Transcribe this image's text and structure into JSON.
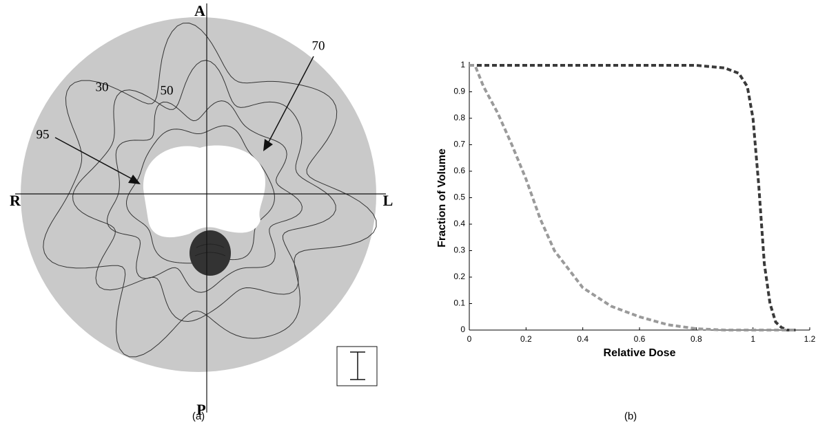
{
  "panel_a": {
    "labels": {
      "anterior": "A",
      "posterior": "P",
      "right": "R",
      "left": "L"
    },
    "contours": [
      "30",
      "50",
      "70",
      "95"
    ],
    "caption": "(a)"
  },
  "chart_data": {
    "type": "line",
    "caption": "(b)",
    "xlabel": "Relative Dose",
    "ylabel": "Fraction of Volume",
    "x": [
      0,
      0.02,
      0.05,
      0.1,
      0.15,
      0.2,
      0.25,
      0.3,
      0.4,
      0.5,
      0.6,
      0.7,
      0.8,
      0.9,
      0.95,
      0.98,
      1.0,
      1.02,
      1.04,
      1.06,
      1.08,
      1.1,
      1.12,
      1.15
    ],
    "series": [
      {
        "color": "#3a3a3a",
        "values": [
          1,
          1,
          1,
          1,
          1,
          1,
          1,
          1,
          1,
          1,
          1,
          1,
          1,
          0.99,
          0.97,
          0.92,
          0.8,
          0.55,
          0.25,
          0.1,
          0.03,
          0.01,
          0,
          0
        ]
      },
      {
        "color": "#9a9a9a",
        "values": [
          1,
          1,
          0.92,
          0.82,
          0.7,
          0.57,
          0.42,
          0.3,
          0.16,
          0.09,
          0.05,
          0.02,
          0.005,
          0,
          0,
          0,
          0,
          0,
          0,
          0,
          0,
          0,
          0,
          0
        ]
      }
    ],
    "xlim": [
      0,
      1.2
    ],
    "xticks": [
      0,
      0.2,
      0.4,
      0.6,
      0.8,
      1,
      1.2
    ],
    "ylim": [
      0,
      1
    ],
    "yticks": [
      0,
      0.1,
      0.2,
      0.3,
      0.4,
      0.5,
      0.6,
      0.7,
      0.8,
      0.9,
      1
    ]
  }
}
